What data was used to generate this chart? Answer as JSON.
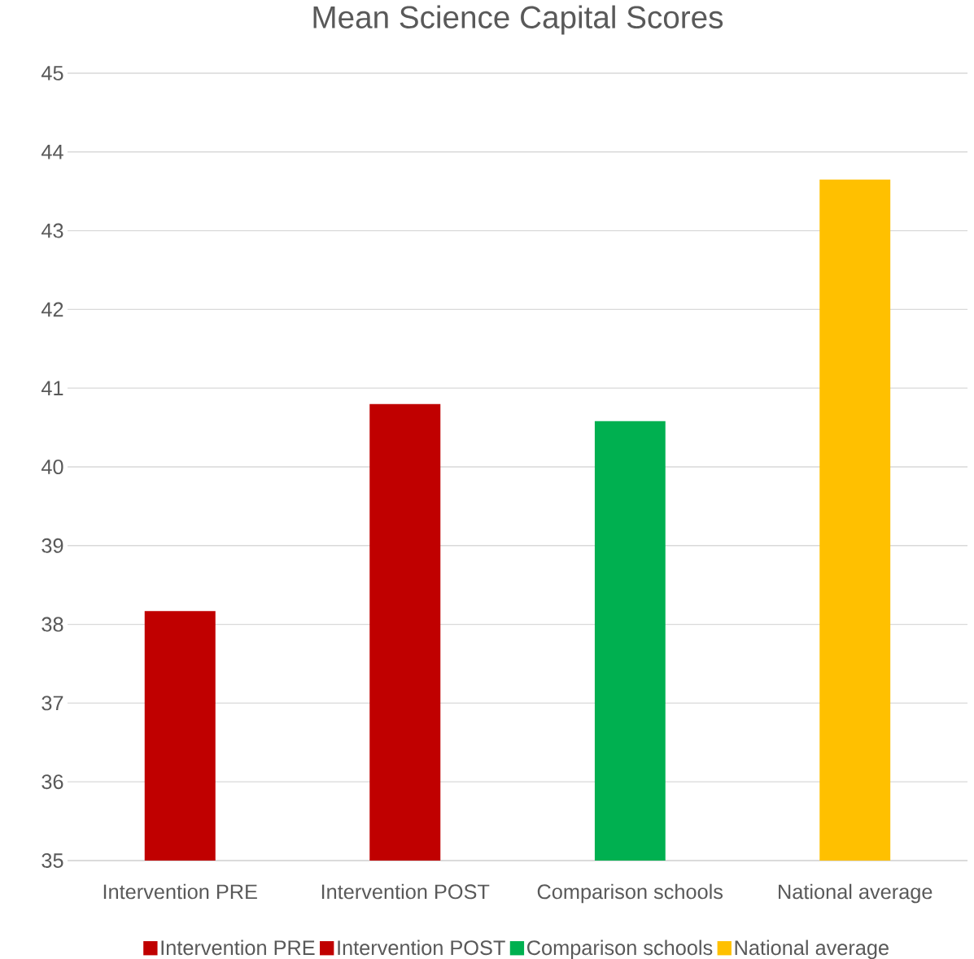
{
  "chart_data": {
    "type": "bar",
    "title": "Mean Science Capital Scores",
    "categories": [
      "Intervention PRE",
      "Intervention POST",
      "Comparison schools",
      "National average"
    ],
    "series": [
      {
        "name": "Intervention PRE",
        "color": "#c00000",
        "values": [
          38.17,
          null,
          null,
          null
        ]
      },
      {
        "name": "Intervention POST",
        "color": "#c00000",
        "values": [
          null,
          40.8,
          null,
          null
        ]
      },
      {
        "name": "Comparison schools",
        "color": "#00b050",
        "values": [
          null,
          null,
          40.58,
          null
        ]
      },
      {
        "name": "National average",
        "color": "#ffc000",
        "values": [
          null,
          null,
          null,
          43.65
        ]
      }
    ],
    "ylim": [
      35,
      45
    ],
    "yticks": [
      35,
      36,
      37,
      38,
      39,
      40,
      41,
      42,
      43,
      44,
      45
    ],
    "grid": "y",
    "legend": "bottom"
  }
}
